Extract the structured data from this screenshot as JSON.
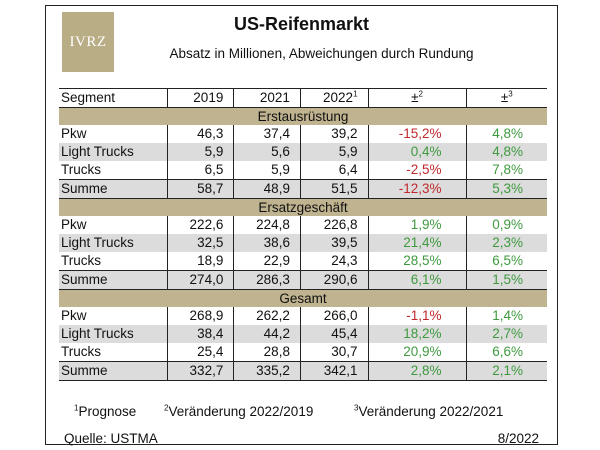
{
  "logo": "IVRZ",
  "title": "US-Reifenmarkt",
  "subtitle": "Absatz in Millionen, Abweichungen durch Rundung",
  "header": {
    "segment": "Segment",
    "y2019": "2019",
    "y2021": "2021",
    "y2022": "2022",
    "y2022_sup": "1",
    "d1": "±",
    "d1_sup": "2",
    "d2": "±",
    "d2_sup": "3"
  },
  "sections": [
    {
      "title": "Erstausrüstung",
      "rows": [
        {
          "segment": "Pkw",
          "v2019": "46,3",
          "v2021": "37,4",
          "v2022": "39,2",
          "d1": "-15,2%",
          "d2": "4,8%"
        },
        {
          "segment": "Light Trucks",
          "v2019": "5,9",
          "v2021": "5,6",
          "v2022": "5,9",
          "d1": "0,4%",
          "d2": "4,8%"
        },
        {
          "segment": "Trucks",
          "v2019": "6,5",
          "v2021": "5,9",
          "v2022": "6,4",
          "d1": "-2,5%",
          "d2": "7,8%"
        },
        {
          "segment": "Summe",
          "v2019": "58,7",
          "v2021": "48,9",
          "v2022": "51,5",
          "d1": "-12,3%",
          "d2": "5,3%"
        }
      ]
    },
    {
      "title": "Ersatzgeschäft",
      "rows": [
        {
          "segment": "Pkw",
          "v2019": "222,6",
          "v2021": "224,8",
          "v2022": "226,8",
          "d1": "1,9%",
          "d2": "0,9%"
        },
        {
          "segment": "Light Trucks",
          "v2019": "32,5",
          "v2021": "38,6",
          "v2022": "39,5",
          "d1": "21,4%",
          "d2": "2,3%"
        },
        {
          "segment": "Trucks",
          "v2019": "18,9",
          "v2021": "22,9",
          "v2022": "24,3",
          "d1": "28,5%",
          "d2": "6,5%"
        },
        {
          "segment": "Summe",
          "v2019": "274,0",
          "v2021": "286,3",
          "v2022": "290,6",
          "d1": "6,1%",
          "d2": "1,5%"
        }
      ]
    },
    {
      "title": "Gesamt",
      "rows": [
        {
          "segment": "Pkw",
          "v2019": "268,9",
          "v2021": "262,2",
          "v2022": "266,0",
          "d1": "-1,1%",
          "d2": "1,4%"
        },
        {
          "segment": "Light Trucks",
          "v2019": "38,4",
          "v2021": "44,2",
          "v2022": "45,4",
          "d1": "18,2%",
          "d2": "2,7%"
        },
        {
          "segment": "Trucks",
          "v2019": "25,4",
          "v2021": "28,8",
          "v2022": "30,7",
          "d1": "20,9%",
          "d2": "6,6%"
        },
        {
          "segment": "Summe",
          "v2019": "332,7",
          "v2021": "335,2",
          "v2022": "342,1",
          "d1": "2,8%",
          "d2": "2,1%"
        }
      ]
    }
  ],
  "footnotes": {
    "n1_sup": "1",
    "n1": "Prognose",
    "n2_sup": "2",
    "n2": "Veränderung 2022/2019",
    "n3_sup": "3",
    "n3": "Veränderung 2022/2021"
  },
  "source": "Quelle: USTMA",
  "date": "8/2022",
  "colors": {
    "section_band": "#bfb390",
    "shaded_row": "#dcdcdc",
    "negative": "#c0282c",
    "positive": "#3f9a3f",
    "logo_bg": "#b9ad86"
  }
}
